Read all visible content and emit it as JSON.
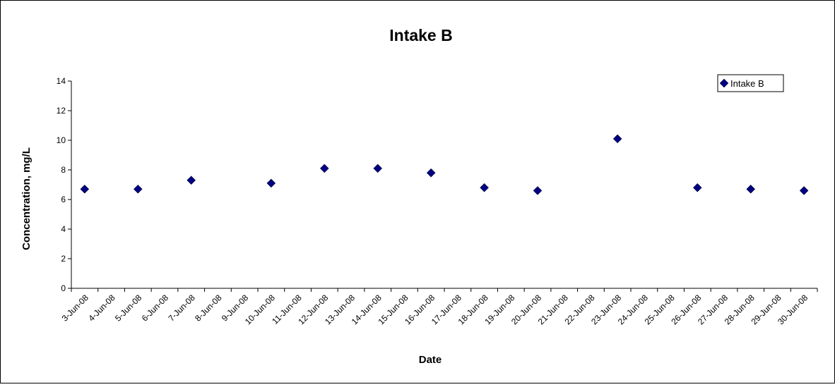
{
  "chart_data": {
    "type": "scatter",
    "title": "Intake B",
    "xlabel": "Date",
    "ylabel": "Concentration, mg/L",
    "ylim": [
      0,
      14
    ],
    "yticks": [
      "0",
      "2",
      "4",
      "6",
      "8",
      "10",
      "12",
      "14"
    ],
    "categories": [
      "3-Jun-08",
      "4-Jun-08",
      "5-Jun-08",
      "6-Jun-08",
      "7-Jun-08",
      "8-Jun-08",
      "9-Jun-08",
      "10-Jun-08",
      "11-Jun-08",
      "12-Jun-08",
      "13-Jun-08",
      "14-Jun-08",
      "15-Jun-08",
      "16-Jun-08",
      "17-Jun-08",
      "18-Jun-08",
      "19-Jun-08",
      "20-Jun-08",
      "21-Jun-08",
      "22-Jun-08",
      "23-Jun-08",
      "24-Jun-08",
      "25-Jun-08",
      "26-Jun-08",
      "27-Jun-08",
      "28-Jun-08",
      "29-Jun-08",
      "30-Jun-08"
    ],
    "grid": false,
    "legend": "top-right",
    "series": [
      {
        "name": "Intake B",
        "color": "#000080",
        "marker": "diamond",
        "points": [
          {
            "x": "3-Jun-08",
            "y": 6.7
          },
          {
            "x": "5-Jun-08",
            "y": 6.7
          },
          {
            "x": "7-Jun-08",
            "y": 7.3
          },
          {
            "x": "10-Jun-08",
            "y": 7.1
          },
          {
            "x": "12-Jun-08",
            "y": 8.1
          },
          {
            "x": "14-Jun-08",
            "y": 8.1
          },
          {
            "x": "16-Jun-08",
            "y": 7.8
          },
          {
            "x": "18-Jun-08",
            "y": 6.8
          },
          {
            "x": "20-Jun-08",
            "y": 6.6
          },
          {
            "x": "23-Jun-08",
            "y": 10.1
          },
          {
            "x": "26-Jun-08",
            "y": 6.8
          },
          {
            "x": "28-Jun-08",
            "y": 6.7
          },
          {
            "x": "30-Jun-08",
            "y": 6.6
          }
        ]
      }
    ]
  }
}
